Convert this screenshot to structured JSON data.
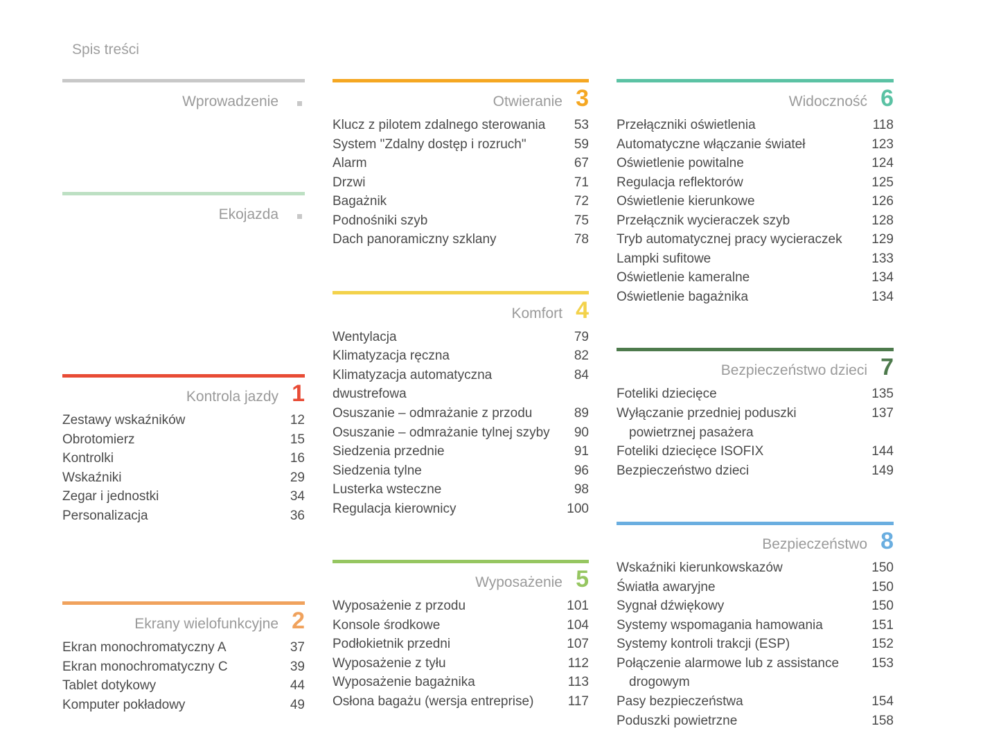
{
  "page_title": "Spis treści",
  "colors": {
    "intro_rule": "#c8c8c8",
    "eco_rule": "#bde0c3",
    "s1": "#e84b35",
    "s2": "#f0a25d",
    "s3": "#f5a722",
    "s4": "#f3d24b",
    "s5": "#96c661",
    "s6": "#5bc2a4",
    "s7": "#4d7a4c",
    "s8": "#6aaee0",
    "title_text": "#9a9a9a",
    "body_text": "#4a4a4a"
  },
  "intro": {
    "title": "Wprowadzenie"
  },
  "eco": {
    "title": "Ekojazda"
  },
  "s1": {
    "title": "Kontrola jazdy",
    "number": "1",
    "items": [
      {
        "label": "Zestawy wskaźników",
        "page": "12"
      },
      {
        "label": "Obrotomierz",
        "page": "15"
      },
      {
        "label": "Kontrolki",
        "page": "16"
      },
      {
        "label": "Wskaźniki",
        "page": "29"
      },
      {
        "label": "Zegar i jednostki",
        "page": "34"
      },
      {
        "label": "Personalizacja",
        "page": "36"
      }
    ]
  },
  "s2": {
    "title": "Ekrany wielofunkcyjne",
    "number": "2",
    "items": [
      {
        "label": "Ekran monochromatyczny A",
        "page": "37"
      },
      {
        "label": "Ekran monochromatyczny C",
        "page": "39"
      },
      {
        "label": "Tablet dotykowy",
        "page": "44"
      },
      {
        "label": "Komputer pokładowy",
        "page": "49"
      }
    ]
  },
  "s3": {
    "title": "Otwieranie",
    "number": "3",
    "items": [
      {
        "label": "Klucz z pilotem zdalnego sterowania",
        "page": "53"
      },
      {
        "label": "System \"Zdalny dostęp i rozruch\"",
        "page": "59"
      },
      {
        "label": "Alarm",
        "page": "67"
      },
      {
        "label": "Drzwi",
        "page": "71"
      },
      {
        "label": "Bagażnik",
        "page": "72"
      },
      {
        "label": "Podnośniki szyb",
        "page": "75"
      },
      {
        "label": "Dach panoramiczny szklany",
        "page": "78"
      }
    ]
  },
  "s4": {
    "title": "Komfort",
    "number": "4",
    "items": [
      {
        "label": "Wentylacja",
        "page": "79"
      },
      {
        "label": "Klimatyzacja ręczna",
        "page": "82"
      },
      {
        "label": "Klimatyzacja automatyczna dwustrefowa",
        "page": "84"
      },
      {
        "label": "Osuszanie – odmrażanie z przodu",
        "page": "89"
      },
      {
        "label": "Osuszanie – odmrażanie tylnej szyby",
        "page": "90"
      },
      {
        "label": "Siedzenia przednie",
        "page": "91"
      },
      {
        "label": "Siedzenia tylne",
        "page": "96"
      },
      {
        "label": "Lusterka wsteczne",
        "page": "98"
      },
      {
        "label": "Regulacja kierownicy",
        "page": "100"
      }
    ]
  },
  "s5": {
    "title": "Wyposażenie",
    "number": "5",
    "items": [
      {
        "label": "Wyposażenie z przodu",
        "page": "101"
      },
      {
        "label": "Konsole środkowe",
        "page": "104"
      },
      {
        "label": "Podłokietnik przedni",
        "page": "107"
      },
      {
        "label": "Wyposażenie z tyłu",
        "page": "112"
      },
      {
        "label": "Wyposażenie bagażnika",
        "page": "113"
      },
      {
        "label": "Osłona bagażu (wersja entreprise)",
        "page": "117"
      }
    ]
  },
  "s6": {
    "title": "Widoczność",
    "number": "6",
    "items": [
      {
        "label": "Przełączniki oświetlenia",
        "page": "118"
      },
      {
        "label": "Automatyczne włączanie świateł",
        "page": "123"
      },
      {
        "label": "Oświetlenie powitalne",
        "page": "124"
      },
      {
        "label": "Regulacja reflektorów",
        "page": "125"
      },
      {
        "label": "Oświetlenie kierunkowe",
        "page": "126"
      },
      {
        "label": "Przełącznik wycieraczek szyb",
        "page": "128"
      },
      {
        "label": "Tryb automatycznej pracy wycieraczek",
        "page": "129"
      },
      {
        "label": "Lampki sufitowe",
        "page": "133"
      },
      {
        "label": "Oświetlenie kameralne",
        "page": "134"
      },
      {
        "label": "Oświetlenie bagażnika",
        "page": "134"
      }
    ]
  },
  "s7": {
    "title": "Bezpieczeństwo dzieci",
    "number": "7",
    "items": [
      {
        "label": "Foteliki dziecięce",
        "page": "135"
      },
      {
        "label_line1": "Wyłączanie przedniej poduszki",
        "label_line2": "powietrznej pasażera",
        "page": "137"
      },
      {
        "label": "Foteliki dziecięce ISOFIX",
        "page": "144"
      },
      {
        "label": "Bezpieczeństwo dzieci",
        "page": "149"
      }
    ]
  },
  "s8": {
    "title": "Bezpieczeństwo",
    "number": "8",
    "items": [
      {
        "label": "Wskaźniki kierunkowskazów",
        "page": "150"
      },
      {
        "label": "Światła awaryjne",
        "page": "150"
      },
      {
        "label": "Sygnał dźwiękowy",
        "page": "150"
      },
      {
        "label": "Systemy wspomagania hamowania",
        "page": "151"
      },
      {
        "label": "Systemy kontroli trakcji (ESP)",
        "page": "152"
      },
      {
        "label_line1": "Połączenie alarmowe lub z assistance",
        "label_line2": "drogowym",
        "page": "153"
      },
      {
        "label": "Pasy bezpieczeństwa",
        "page": "154"
      },
      {
        "label": "Poduszki powietrzne",
        "page": "158"
      }
    ]
  }
}
